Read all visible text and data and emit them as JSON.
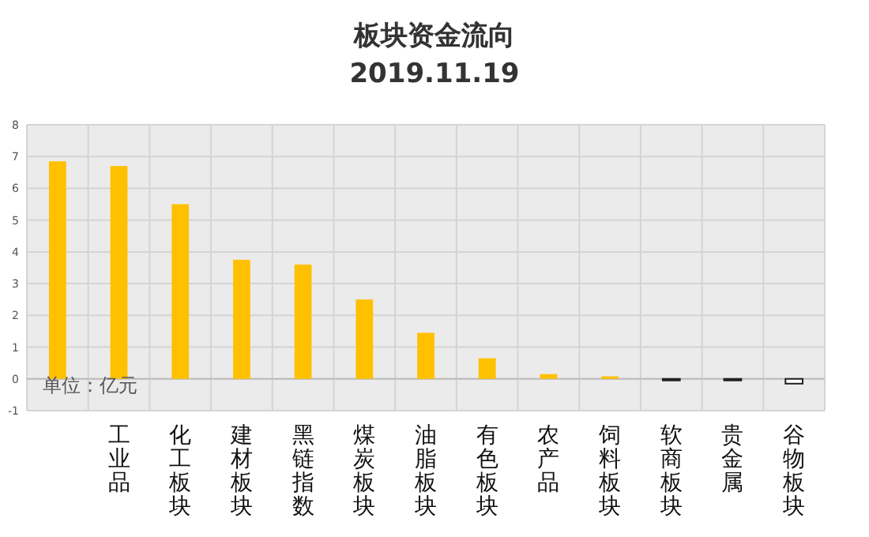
{
  "chart_data": {
    "type": "bar",
    "title": "板块资金流向",
    "subtitle": "2019.11.19",
    "categories": [
      null,
      "工业品",
      "化工板块",
      "建材板块",
      "黑链指数",
      "煤炭板块",
      "油脂板块",
      "有色板块",
      "农产品",
      "饲料板块",
      "软商板块",
      "贵金属",
      "谷物板块"
    ],
    "values": [
      6.85,
      6.7,
      5.5,
      3.75,
      3.6,
      2.5,
      1.45,
      0.65,
      0.15,
      0.08,
      -0.05,
      -0.05,
      -0.15
    ],
    "colors": [
      "#ffc000",
      "#ffc000",
      "#ffc000",
      "#ffc000",
      "#ffc000",
      "#ffc000",
      "#ffc000",
      "#ffc000",
      "#ffc000",
      "#ffc000",
      "#ffffff",
      "#ffffff",
      "#ffffff"
    ],
    "ylim": [
      -1,
      8
    ],
    "yticks": [
      -1,
      0,
      1,
      2,
      3,
      4,
      5,
      6,
      7,
      8
    ],
    "grid": true,
    "annotations": [
      "单位：亿元"
    ]
  }
}
